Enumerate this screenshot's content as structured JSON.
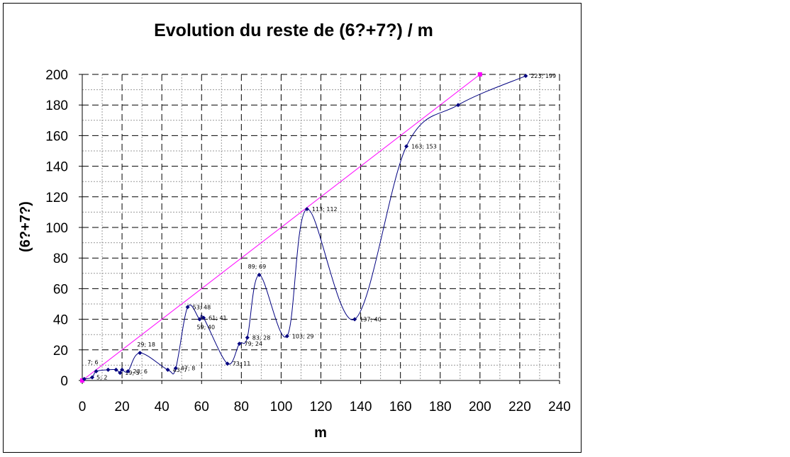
{
  "chart_data": {
    "type": "scatter",
    "title": "Evolution du reste de (6?+7?) / m",
    "xlabel": "m",
    "ylabel": "(6?+7?)",
    "xlim": [
      0,
      240
    ],
    "ylim": [
      0,
      200
    ],
    "xticks": [
      0,
      20,
      40,
      60,
      80,
      100,
      120,
      140,
      160,
      180,
      200,
      220,
      240
    ],
    "yticks": [
      0,
      20,
      40,
      60,
      80,
      100,
      120,
      140,
      160,
      180,
      200
    ],
    "grid": true,
    "legend": "none",
    "series": [
      {
        "color": "#000080",
        "smooth": true,
        "x": [
          1,
          5,
          7,
          13,
          17,
          19,
          20,
          23,
          29,
          43,
          47,
          53,
          59,
          61,
          73,
          79,
          83,
          89,
          103,
          113,
          137,
          163,
          189,
          223
        ],
        "y": [
          1,
          2,
          6,
          7,
          7,
          5,
          7,
          6,
          18,
          7,
          8,
          48,
          40,
          41,
          11,
          24,
          28,
          69,
          29,
          112,
          40,
          153,
          180,
          199
        ],
        "labels": [
          "",
          "5; 2",
          "7; 6",
          "",
          "",
          "19; 5",
          "",
          "23; 6",
          "29; 18",
          "43; 7",
          "47; 8",
          "53; 48",
          "59; 40",
          "61; 41",
          "73; 11",
          "79; 24",
          "83; 28",
          "89; 69",
          "103; 29",
          "113; 112",
          "137; 40",
          "163; 153",
          "",
          "223; 199"
        ]
      },
      {
        "color": "#ff00ff",
        "smooth": false,
        "x": [
          0,
          200
        ],
        "y": [
          0,
          200
        ],
        "labels": [
          "",
          ""
        ]
      }
    ]
  }
}
